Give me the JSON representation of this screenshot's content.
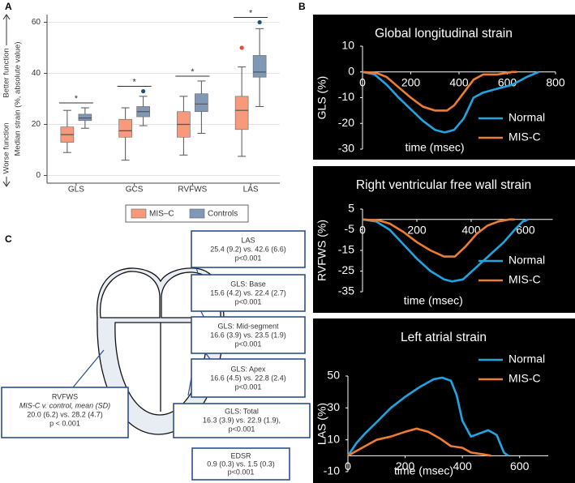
{
  "panels": [
    "A",
    "B",
    "C"
  ],
  "chart_data": [
    {
      "type": "box",
      "y_label": "Median strain (%, absolute value)",
      "annotations": [
        "Better function",
        "Worse function"
      ],
      "categories": [
        "GLS",
        "GCS",
        "RVFWS",
        "LAS"
      ],
      "ylim": [
        -3,
        63
      ],
      "yticks": [
        0,
        20,
        40,
        60
      ],
      "grid": true,
      "legend": "bottom",
      "significance": [
        "*",
        "*",
        "*",
        "*"
      ],
      "series": [
        {
          "name": "MIS–C",
          "color": "#f7997a",
          "outlier_color": "#e8483b",
          "values": [
            {
              "low": 9,
              "q1": 13,
              "median": 16,
              "q3": 19,
              "high": 25.5
            },
            {
              "low": 6,
              "q1": 15,
              "median": 17.5,
              "q3": 22,
              "high": 26.5
            },
            {
              "low": 8,
              "q1": 15,
              "median": 20,
              "q3": 25,
              "high": 31
            },
            {
              "low": 7.5,
              "q1": 18,
              "median": 25.5,
              "q3": 31,
              "high": 42.5,
              "outliers": [
                50
              ]
            }
          ]
        },
        {
          "name": "Controls",
          "color": "#7f98b5",
          "outlier_color": "#1f4e79",
          "values": [
            {
              "low": 18.5,
              "q1": 21.5,
              "median": 22.5,
              "q3": 24,
              "high": 26.5
            },
            {
              "low": 19.5,
              "q1": 23,
              "median": 25,
              "q3": 27,
              "high": 31,
              "outliers": [
                33
              ]
            },
            {
              "low": 16.5,
              "q1": 25,
              "median": 28,
              "q3": 32,
              "high": 37
            },
            {
              "low": 27,
              "q1": 38.5,
              "median": 40.5,
              "q3": 47,
              "high": 57.5,
              "outliers": [
                60
              ]
            }
          ]
        }
      ]
    },
    {
      "type": "line",
      "title": "Global longitudinal strain",
      "y_label": "GLS (%)",
      "x_label": "time (msec)",
      "xlim": [
        0,
        800
      ],
      "xticks": [
        0,
        200,
        400,
        600,
        800
      ],
      "ylim": [
        -30,
        10
      ],
      "yticks": [
        10,
        0,
        -10,
        -20,
        -30
      ],
      "legend": "lower right",
      "series": [
        {
          "name": "Normal",
          "color": "#1fa6e2",
          "x": [
            0,
            50,
            100,
            150,
            200,
            250,
            300,
            340,
            380,
            420,
            460,
            500,
            560,
            620,
            680,
            730
          ],
          "values": [
            0,
            -1,
            -5,
            -10,
            -14.5,
            -19,
            -22.5,
            -23.5,
            -22.5,
            -18,
            -10,
            -8,
            -6.5,
            -5,
            -2,
            0
          ]
        },
        {
          "name": "MIS-C",
          "color": "#ed7d31",
          "x": [
            0,
            60,
            100,
            150,
            200,
            250,
            300,
            350,
            380,
            420,
            460,
            500,
            560,
            620,
            640
          ],
          "values": [
            0,
            -0.5,
            -2,
            -6,
            -10,
            -13.5,
            -15,
            -15,
            -13,
            -8,
            -3,
            -1,
            -1,
            0,
            0
          ]
        }
      ]
    },
    {
      "type": "line",
      "title": "Right ventricular free wall strain",
      "y_label": "RVFWS (%)",
      "x_label": "time (msec)",
      "xlim": [
        0,
        700
      ],
      "xticks": [
        0,
        200,
        400,
        600
      ],
      "ylim": [
        -35,
        5
      ],
      "yticks": [
        5,
        -5,
        -15,
        -25,
        -35
      ],
      "legend": "lower right",
      "series": [
        {
          "name": "Normal",
          "color": "#1fa6e2",
          "x": [
            0,
            50,
            100,
            150,
            200,
            250,
            300,
            330,
            370,
            420,
            470,
            520,
            560,
            590,
            610
          ],
          "values": [
            0,
            -1,
            -5,
            -12,
            -19,
            -25,
            -29,
            -30,
            -29,
            -23,
            -17,
            -11,
            -5,
            -1,
            0
          ]
        },
        {
          "name": "MIS-C",
          "color": "#ed7d31",
          "x": [
            0,
            60,
            100,
            150,
            200,
            250,
            300,
            340,
            380,
            420,
            460,
            500,
            540,
            560
          ],
          "values": [
            0,
            -0.5,
            -2,
            -6,
            -11,
            -15,
            -18,
            -18,
            -13,
            -7,
            -3,
            -1,
            0,
            0
          ]
        }
      ]
    },
    {
      "type": "line",
      "title": "Left atrial strain",
      "y_label": "LAS (%)",
      "x_label": "time (msec)",
      "xlim": [
        0,
        700
      ],
      "xticks": [
        0,
        200,
        400,
        600
      ],
      "ylim": [
        -10,
        50
      ],
      "yticks": [
        50,
        30,
        10,
        -10
      ],
      "legend": "upper right",
      "series": [
        {
          "name": "Normal",
          "color": "#1fa6e2",
          "x": [
            0,
            30,
            60,
            100,
            150,
            200,
            250,
            280,
            300,
            330,
            360,
            380,
            400,
            430,
            460,
            490,
            520,
            545,
            560
          ],
          "values": [
            0,
            8,
            14,
            21,
            30,
            37,
            43,
            46,
            48,
            49,
            47,
            38,
            22,
            12,
            14,
            16,
            13,
            2,
            0
          ]
        },
        {
          "name": "MIS-C",
          "color": "#ed7d31",
          "x": [
            0,
            50,
            100,
            150,
            200,
            240,
            280,
            320,
            360,
            400,
            430,
            470,
            500
          ],
          "values": [
            0,
            5,
            10,
            12,
            15,
            17,
            15,
            11,
            6,
            5,
            2,
            1,
            0
          ]
        }
      ]
    }
  ],
  "diagram": {
    "boxes": [
      {
        "lines": [
          "LAS",
          "25.4 (9.2) vs. 42.6 (6.6)",
          "p<0.001"
        ]
      },
      {
        "lines": [
          "GLS: Base",
          "15.6 (4.2) vs. 22.4 (2.7)",
          "p<0.001"
        ]
      },
      {
        "lines": [
          "GLS: Mid-segment",
          "16.6 (3.9) vs. 23.5 (1.9)",
          "p<0.001"
        ]
      },
      {
        "lines": [
          "GLS: Apex",
          "16.6 (4.5) vs. 22.8 (2.4)",
          "p<0.001"
        ]
      },
      {
        "lines": [
          "GLS: Total",
          "16.3 (3.9) vs. 22.9 (1.9),",
          "p<0.001"
        ]
      },
      {
        "lines": [
          "EDSR",
          "0.9 (0.3) vs. 1.5 (0.3)",
          "p<0.001"
        ]
      },
      {
        "lines": [
          "RVFWS",
          "MIS-C v. control, mean (SD)",
          "20.0 (6.2) vs. 28.2 (4.7)",
          "p < 0.001"
        ]
      }
    ]
  }
}
